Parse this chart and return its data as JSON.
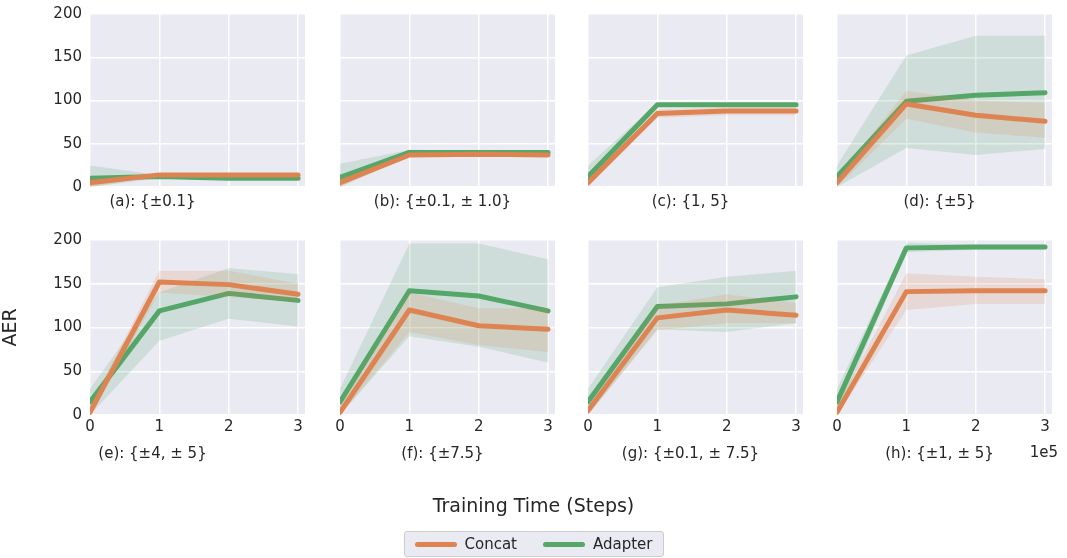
{
  "chart_data": [
    {
      "type": "line",
      "title": "(a): {±0.1}",
      "x": [
        0,
        1,
        2,
        3
      ],
      "xlim": [
        0,
        3.1
      ],
      "xticks": [
        0,
        1,
        2,
        3
      ],
      "ylim": [
        0,
        200
      ],
      "yticks": [
        0,
        50,
        100,
        150,
        200
      ],
      "grid": true,
      "tick_labels": "y",
      "series": [
        {
          "color": "#dd8452",
          "values": [
            5,
            14,
            14,
            14
          ],
          "lower": [
            0,
            12,
            12,
            12
          ],
          "upper": [
            10,
            16,
            16,
            16
          ]
        },
        {
          "color": "#55a868",
          "values": [
            10,
            12,
            10,
            10
          ],
          "lower": [
            0,
            10,
            8,
            8
          ],
          "upper": [
            25,
            14,
            12,
            12
          ]
        }
      ]
    },
    {
      "type": "line",
      "title": "(b): {±0.1, ± 1.0}",
      "x": [
        0,
        1,
        2,
        3
      ],
      "xlim": [
        0,
        3.1
      ],
      "xticks": [
        0,
        1,
        2,
        3
      ],
      "ylim": [
        0,
        200
      ],
      "yticks": [
        0,
        50,
        100,
        150,
        200
      ],
      "grid": true,
      "tick_labels": false,
      "series": [
        {
          "color": "#dd8452",
          "values": [
            5,
            37,
            38,
            37
          ],
          "lower": [
            0,
            35,
            36,
            35
          ],
          "upper": [
            10,
            39,
            40,
            39
          ]
        },
        {
          "color": "#55a868",
          "values": [
            11,
            40,
            40,
            40
          ],
          "lower": [
            0,
            38,
            38,
            38
          ],
          "upper": [
            27,
            43,
            42,
            42
          ]
        }
      ]
    },
    {
      "type": "line",
      "title": "(c): {1, 5}",
      "x": [
        0,
        1,
        2,
        3
      ],
      "xlim": [
        0,
        3.1
      ],
      "xticks": [
        0,
        1,
        2,
        3
      ],
      "ylim": [
        0,
        200
      ],
      "yticks": [
        0,
        50,
        100,
        150,
        200
      ],
      "grid": true,
      "tick_labels": false,
      "series": [
        {
          "color": "#dd8452",
          "values": [
            5,
            85,
            88,
            88
          ],
          "lower": [
            0,
            80,
            83,
            83
          ],
          "upper": [
            10,
            90,
            92,
            92
          ]
        },
        {
          "color": "#55a868",
          "values": [
            12,
            95,
            95,
            95
          ],
          "lower": [
            2,
            93,
            93,
            93
          ],
          "upper": [
            25,
            97,
            97,
            97
          ]
        }
      ]
    },
    {
      "type": "line",
      "title": "(d): {±5}",
      "x": [
        0,
        1,
        2,
        3
      ],
      "xlim": [
        0,
        3.1
      ],
      "xticks": [
        0,
        1,
        2,
        3
      ],
      "ylim": [
        0,
        200
      ],
      "yticks": [
        0,
        50,
        100,
        150,
        200
      ],
      "grid": true,
      "tick_labels": false,
      "series": [
        {
          "color": "#dd8452",
          "values": [
            5,
            96,
            83,
            76
          ],
          "lower": [
            0,
            79,
            63,
            57
          ],
          "upper": [
            10,
            111,
            100,
            97
          ]
        },
        {
          "color": "#55a868",
          "values": [
            12,
            99,
            106,
            109
          ],
          "lower": [
            0,
            45,
            37,
            44
          ],
          "upper": [
            25,
            152,
            175,
            175
          ]
        }
      ]
    },
    {
      "type": "line",
      "title": "(e): {±4, ± 5}",
      "ylabel": "AER",
      "x": [
        0,
        1,
        2,
        3
      ],
      "xlim": [
        0,
        3.1
      ],
      "xticks": [
        0,
        1,
        2,
        3
      ],
      "ylim": [
        0,
        200
      ],
      "yticks": [
        0,
        50,
        100,
        150,
        200
      ],
      "grid": true,
      "series": [
        {
          "color": "#dd8452",
          "values": [
            3,
            152,
            149,
            138
          ],
          "lower": [
            0,
            140,
            135,
            130
          ],
          "upper": [
            10,
            165,
            165,
            150
          ]
        },
        {
          "color": "#55a868",
          "values": [
            15,
            119,
            139,
            131
          ],
          "lower": [
            0,
            85,
            110,
            101
          ],
          "upper": [
            30,
            140,
            168,
            161
          ]
        }
      ]
    },
    {
      "type": "line",
      "title": "(f): {±7.5}",
      "xlabel": "Training Time (Steps)",
      "x": [
        0,
        1,
        2,
        3
      ],
      "xlim": [
        0,
        3.1
      ],
      "xticks": [
        0,
        1,
        2,
        3
      ],
      "ylim": [
        0,
        200
      ],
      "yticks": [
        0,
        50,
        100,
        150,
        200
      ],
      "grid": true,
      "tick_labels": "x",
      "series": [
        {
          "color": "#dd8452",
          "values": [
            3,
            120,
            102,
            98
          ],
          "lower": [
            0,
            95,
            80,
            72
          ],
          "upper": [
            10,
            140,
            122,
            122
          ]
        },
        {
          "color": "#55a868",
          "values": [
            15,
            142,
            136,
            119
          ],
          "lower": [
            0,
            90,
            78,
            60
          ],
          "upper": [
            30,
            196,
            196,
            178
          ]
        }
      ]
    },
    {
      "type": "line",
      "title": "(g): {±0.1, ± 7.5}",
      "x": [
        0,
        1,
        2,
        3
      ],
      "xlim": [
        0,
        3.1
      ],
      "xticks": [
        0,
        1,
        2,
        3
      ],
      "ylim": [
        0,
        200
      ],
      "yticks": [
        0,
        50,
        100,
        150,
        200
      ],
      "grid": true,
      "tick_labels": "x",
      "series": [
        {
          "color": "#dd8452",
          "values": [
            5,
            111,
            120,
            114
          ],
          "lower": [
            0,
            97,
            105,
            105
          ],
          "upper": [
            10,
            125,
            138,
            128
          ]
        },
        {
          "color": "#55a868",
          "values": [
            15,
            124,
            127,
            135
          ],
          "lower": [
            0,
            98,
            95,
            105
          ],
          "upper": [
            30,
            146,
            158,
            165
          ]
        }
      ]
    },
    {
      "type": "line",
      "title": "(h): {±1, ± 5}",
      "annotations": [
        "1e5"
      ],
      "legend": "bottom",
      "x": [
        0,
        1,
        2,
        3
      ],
      "xlim": [
        0,
        3.1
      ],
      "xticks": [
        0,
        1,
        2,
        3
      ],
      "ylim": [
        0,
        200
      ],
      "yticks": [
        0,
        50,
        100,
        150,
        200
      ],
      "grid": true,
      "tick_labels": "x",
      "series": [
        {
          "name": "Concat",
          "color": "#dd8452",
          "values": [
            3,
            141,
            142,
            142
          ],
          "lower": [
            0,
            120,
            127,
            127
          ],
          "upper": [
            10,
            162,
            158,
            155
          ]
        },
        {
          "name": "Adapter",
          "color": "#55a868",
          "values": [
            15,
            191,
            192,
            192
          ],
          "lower": [
            0,
            186,
            189,
            189
          ],
          "upper": [
            30,
            197,
            195,
            195
          ]
        }
      ]
    }
  ]
}
